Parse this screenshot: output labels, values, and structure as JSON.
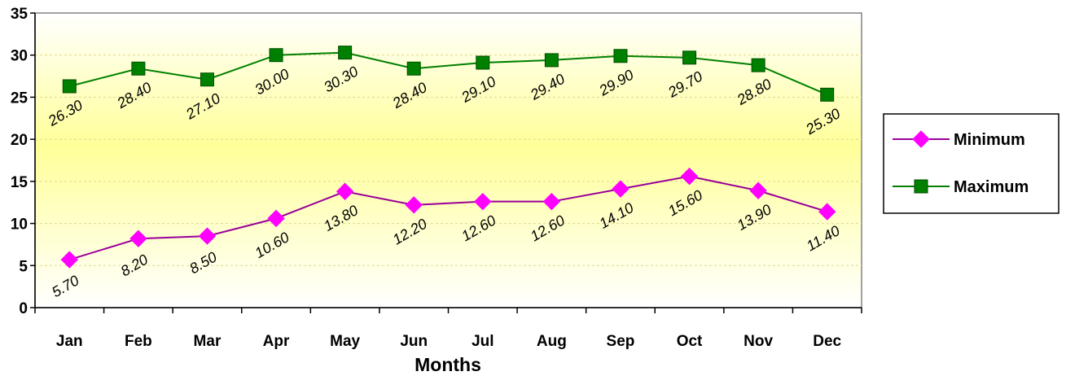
{
  "chart_data": {
    "type": "line",
    "categories": [
      "Jan",
      "Feb",
      "Mar",
      "Apr",
      "May",
      "Jun",
      "Jul",
      "Aug",
      "Sep",
      "Oct",
      "Nov",
      "Dec"
    ],
    "series": [
      {
        "name": "Minimum",
        "color": "#990099",
        "marker": "diamond",
        "marker_color": "#ff00ff",
        "values": [
          5.7,
          8.2,
          8.5,
          10.6,
          13.8,
          12.2,
          12.6,
          12.6,
          14.1,
          15.6,
          13.9,
          11.4
        ],
        "labels": [
          "5.70",
          "8.20",
          "8.50",
          "10.60",
          "13.80",
          "12.20",
          "12.60",
          "12.60",
          "14.10",
          "15.60",
          "13.90",
          "11.40"
        ]
      },
      {
        "name": "Maximum",
        "color": "#008000",
        "marker": "square",
        "marker_color": "#008000",
        "values": [
          26.3,
          28.4,
          27.1,
          30.0,
          30.3,
          28.4,
          29.1,
          29.4,
          29.9,
          29.7,
          28.8,
          25.3
        ],
        "labels": [
          "26.30",
          "28.40",
          "27.10",
          "30.00",
          "30.30",
          "28.40",
          "29.10",
          "29.40",
          "29.90",
          "29.70",
          "28.80",
          "25.30"
        ]
      }
    ],
    "xlabel": "Months",
    "ylabel": "",
    "ylim": [
      0,
      35
    ],
    "yticks": [
      0,
      5,
      10,
      15,
      20,
      25,
      30,
      35
    ],
    "grid": true,
    "legend_position": "right",
    "plot_background": "yellow gradient"
  }
}
